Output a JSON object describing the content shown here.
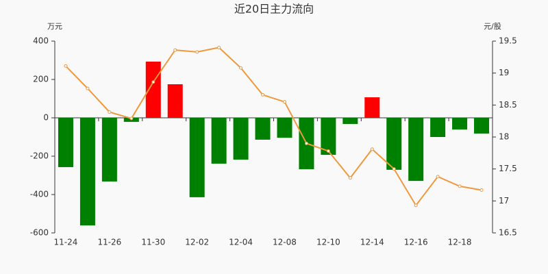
{
  "chart_data": {
    "type": "bar",
    "title": "近20日主力流向",
    "y_label": "万元",
    "y2_label": "元/股",
    "categories": [
      "11-24",
      null,
      "11-26",
      null,
      "11-30",
      null,
      "12-02",
      null,
      "12-04",
      null,
      "12-08",
      null,
      "12-10",
      null,
      "12-14",
      null,
      "12-16",
      null,
      "12-18",
      null
    ],
    "series": [
      {
        "type": "bar",
        "positive_color": "#ff0000",
        "negative_color": "#008000",
        "values": [
          -257,
          -561,
          -332,
          -21,
          293,
          175,
          -414,
          -239,
          -218,
          -114,
          -104,
          -268,
          -193,
          -32,
          107,
          -271,
          -329,
          -100,
          -61,
          -82
        ]
      },
      {
        "type": "line",
        "axis": "y2",
        "color": "#f0983c",
        "values": [
          19.11,
          18.76,
          18.39,
          18.29,
          18.86,
          19.36,
          19.33,
          19.4,
          19.08,
          18.66,
          18.55,
          17.9,
          17.78,
          17.36,
          17.81,
          17.5,
          16.93,
          17.38,
          17.23,
          17.17
        ]
      }
    ],
    "ylim": [
      -600,
      400
    ],
    "yticks": [
      -600,
      -400,
      -200,
      0,
      200,
      400
    ],
    "y2lim": [
      16.5,
      19.5
    ],
    "y2ticks": [
      16.5,
      17,
      17.5,
      18,
      18.5,
      19,
      19.5
    ]
  }
}
